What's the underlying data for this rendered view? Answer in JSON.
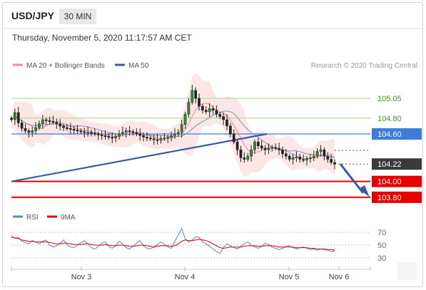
{
  "header": {
    "symbol": "USD/JPY",
    "timeframe": "30 MIN"
  },
  "timestamp": "Thursday, November 5, 2020 11:17:57 AM CET",
  "legend": {
    "items": [
      {
        "label": "MA 20 + Bollinger Bands",
        "color": "#f08c8c"
      },
      {
        "label": "MA 50",
        "color": "#3a5b9e"
      }
    ]
  },
  "credit": "Research © 2020 Trading Central",
  "colors": {
    "green": "#b7db9a",
    "green_text": "#4a9a1a",
    "blue": "#3b7ddd",
    "red": "#e60000",
    "dark": "#3a3a3a",
    "band": "#fde3e3"
  },
  "chart_data": {
    "type": "candlestick",
    "symbol": "USD/JPY",
    "interval": "30 MIN",
    "x_ticks": [
      "Nov 3",
      "Nov 4",
      "Nov 5",
      "Nov 6"
    ],
    "y_range": [
      103.75,
      105.3
    ],
    "levels": [
      {
        "value": 105.05,
        "label": "105.05",
        "kind": "resistance"
      },
      {
        "value": 104.8,
        "label": "104.80",
        "kind": "resistance"
      },
      {
        "value": 104.6,
        "label": "104.60",
        "kind": "pivot"
      },
      {
        "value": 104.22,
        "label": "104.22",
        "kind": "last"
      },
      {
        "value": 104.0,
        "label": "104.00",
        "kind": "target"
      },
      {
        "value": 103.8,
        "label": "103.80",
        "kind": "target"
      }
    ],
    "trendline": {
      "from": {
        "x": "Nov 2",
        "y": 104.0
      },
      "to": {
        "x": "Nov 4",
        "y": 104.6
      }
    },
    "forecast_arrow": {
      "from": 104.22,
      "to": 103.8,
      "direction": "down"
    },
    "price_path": [
      104.78,
      104.87,
      104.74,
      104.67,
      104.64,
      104.62,
      104.64,
      104.68,
      104.73,
      104.78,
      104.77,
      104.76,
      104.75,
      104.73,
      104.7,
      104.68,
      104.67,
      104.66,
      104.65,
      104.64,
      104.63,
      104.62,
      104.62,
      104.61,
      104.6,
      104.59,
      104.58,
      104.57,
      104.56,
      104.55,
      104.57,
      104.6,
      104.62,
      104.64,
      104.63,
      104.62,
      104.6,
      104.58,
      104.56,
      104.55,
      104.54,
      104.53,
      104.52,
      104.54,
      104.55,
      104.56,
      104.58,
      104.6,
      104.62,
      104.72,
      104.85,
      105.0,
      105.15,
      105.05,
      104.95,
      104.9,
      104.88,
      104.92,
      104.9,
      104.85,
      104.82,
      104.78,
      104.7,
      104.6,
      104.5,
      104.4,
      104.3,
      104.28,
      104.32,
      104.4,
      104.5,
      104.45,
      104.42,
      104.4,
      104.42,
      104.43,
      104.42,
      104.4,
      104.35,
      104.32,
      104.28,
      104.3,
      104.31,
      104.28,
      104.27,
      104.29,
      104.3,
      104.32,
      104.38,
      104.4,
      104.32,
      104.28,
      104.24,
      104.22
    ],
    "rsi": {
      "name": "RSI",
      "signal_name": "9MA",
      "y_ticks": [
        70,
        50,
        30
      ],
      "range": [
        20,
        80
      ],
      "values": [
        65,
        61,
        62,
        56,
        54,
        52,
        57,
        55,
        52,
        56,
        58,
        50,
        47,
        49,
        53,
        58,
        51,
        47,
        46,
        50,
        54,
        57,
        52,
        46,
        44,
        48,
        53,
        55,
        48,
        45,
        50,
        56,
        52,
        46,
        44,
        48,
        53,
        57,
        49,
        45,
        44,
        47,
        51,
        55,
        51,
        47,
        45,
        56,
        66,
        76,
        60,
        55,
        58,
        63,
        62,
        55,
        52,
        48,
        44,
        40,
        37,
        46,
        52,
        49,
        46,
        44,
        48,
        52,
        55,
        50,
        47,
        45,
        48,
        53,
        51,
        47,
        45,
        43,
        45,
        48,
        49,
        46,
        44,
        46,
        47,
        45,
        43,
        44,
        42,
        44,
        43,
        42,
        40,
        41
      ],
      "signal": [
        62,
        61,
        60,
        58,
        57,
        56,
        56,
        55,
        55,
        55,
        55,
        54,
        53,
        52,
        52,
        53,
        53,
        52,
        51,
        51,
        51,
        52,
        52,
        51,
        50,
        50,
        50,
        51,
        50,
        49,
        49,
        50,
        50,
        49,
        48,
        48,
        49,
        50,
        50,
        49,
        48,
        47,
        48,
        49,
        49,
        49,
        48,
        49,
        52,
        56,
        58,
        57,
        57,
        58,
        59,
        58,
        57,
        55,
        52,
        49,
        46,
        45,
        46,
        47,
        47,
        47,
        47,
        48,
        49,
        49,
        49,
        48,
        48,
        49,
        49,
        49,
        48,
        47,
        47,
        47,
        47,
        47,
        46,
        46,
        46,
        46,
        45,
        45,
        44,
        44,
        44,
        43,
        43,
        42
      ]
    }
  },
  "rsi_legend": [
    {
      "label": "RSI",
      "color": "#5b82d8"
    },
    {
      "label": "9MA",
      "color": "#e00000"
    }
  ],
  "rsi_tick_labels": [
    "70",
    "50",
    "30"
  ]
}
